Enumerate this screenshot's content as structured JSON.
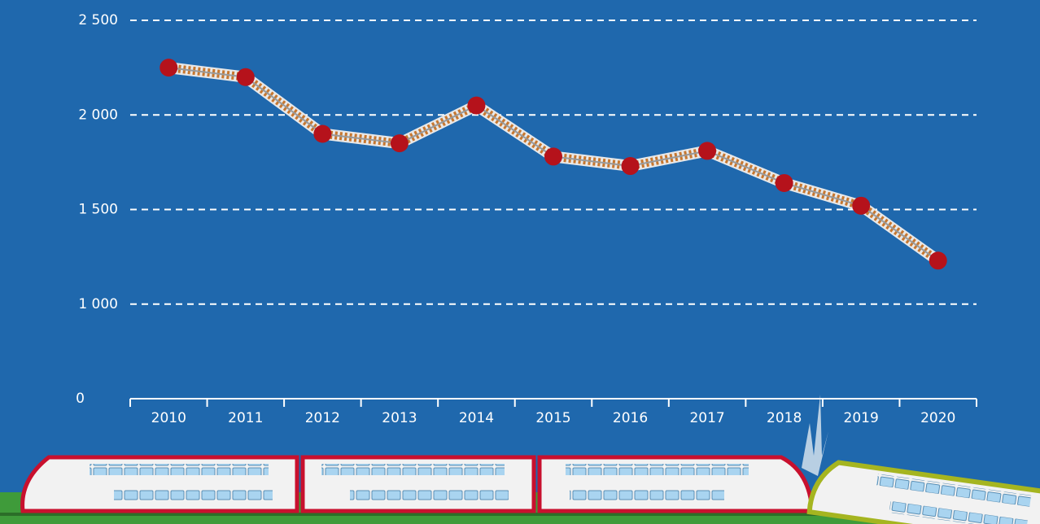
{
  "chart_data": {
    "type": "line",
    "categories": [
      "2010",
      "2011",
      "2012",
      "2013",
      "2014",
      "2015",
      "2016",
      "2017",
      "2018",
      "2019",
      "2020"
    ],
    "values": [
      2250,
      2200,
      1900,
      1850,
      2050,
      1780,
      1730,
      1810,
      1640,
      1520,
      1230
    ],
    "color": "#b5121b",
    "ylim": [
      0,
      2500
    ],
    "yticks": [
      0,
      {
        "value": 1000,
        "label": "1 000"
      },
      {
        "value": 1500,
        "label": "1 500"
      },
      {
        "value": 2000,
        "label": "2 000"
      },
      {
        "value": 2500,
        "label": "2 500"
      }
    ],
    "grid": true
  }
}
